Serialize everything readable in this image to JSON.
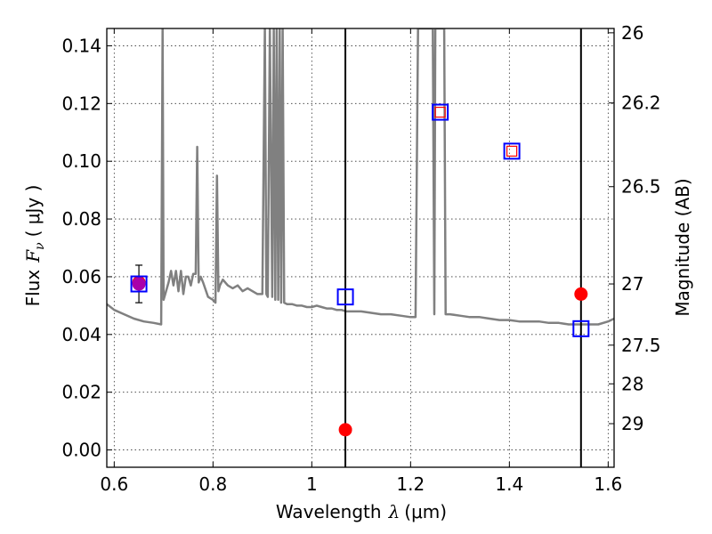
{
  "chart_data": {
    "type": "scatter",
    "xlabel": {
      "main": "Wavelength",
      "symbol": "λ",
      "unit": "(μm)"
    },
    "ylabel": {
      "main": "Flux",
      "symbol": "F",
      "sub": "ν",
      "unit": "( μJy )"
    },
    "y2label": "Magnitude (AB)",
    "xlim": [
      0.585,
      1.612
    ],
    "ylim": [
      -0.006,
      0.146
    ],
    "grid": true,
    "x_ticks": [
      {
        "value": 0.6,
        "label": "0.6"
      },
      {
        "value": 0.8,
        "label": "0.8"
      },
      {
        "value": 1.0,
        "label": "1"
      },
      {
        "value": 1.2,
        "label": "1.2"
      },
      {
        "value": 1.4,
        "label": "1.4"
      },
      {
        "value": 1.6,
        "label": "1.6"
      }
    ],
    "y_ticks": [
      {
        "value": 0.0,
        "label": "0.00"
      },
      {
        "value": 0.02,
        "label": "0.02"
      },
      {
        "value": 0.04,
        "label": "0.04"
      },
      {
        "value": 0.06,
        "label": "0.06"
      },
      {
        "value": 0.08,
        "label": "0.08"
      },
      {
        "value": 0.1,
        "label": "0.10"
      },
      {
        "value": 0.12,
        "label": "0.12"
      },
      {
        "value": 0.14,
        "label": "0.14"
      }
    ],
    "y2_ticks": [
      {
        "label": "26",
        "flux": 0.1445
      },
      {
        "label": "26.2",
        "flux": 0.1202
      },
      {
        "label": "26.5",
        "flux": 0.0912
      },
      {
        "label": "27",
        "flux": 0.0575
      },
      {
        "label": "27.5",
        "flux": 0.0363
      },
      {
        "label": "28",
        "flux": 0.0229
      },
      {
        "label": "29",
        "flux": 0.0091
      }
    ],
    "vertical_lines": [
      1.068,
      1.545
    ],
    "series": [
      {
        "role": "model-sed",
        "style": "line",
        "color": "#808080",
        "x": [
          0.585,
          0.6,
          0.62,
          0.64,
          0.66,
          0.68,
          0.695,
          0.698,
          0.7,
          0.705,
          0.71,
          0.715,
          0.72,
          0.725,
          0.73,
          0.735,
          0.74,
          0.745,
          0.75,
          0.755,
          0.76,
          0.765,
          0.768,
          0.771,
          0.775,
          0.78,
          0.79,
          0.8,
          0.805,
          0.808,
          0.811,
          0.814,
          0.82,
          0.83,
          0.84,
          0.85,
          0.86,
          0.87,
          0.88,
          0.89,
          0.9,
          0.905,
          0.908,
          0.911,
          0.915,
          0.92,
          0.923,
          0.926,
          0.929,
          0.932,
          0.935,
          0.938,
          0.941,
          0.944,
          0.95,
          0.96,
          0.97,
          0.98,
          0.99,
          1.0,
          1.01,
          1.02,
          1.03,
          1.04,
          1.05,
          1.06,
          1.07,
          1.08,
          1.09,
          1.1,
          1.12,
          1.14,
          1.16,
          1.18,
          1.2,
          1.21,
          1.215,
          1.22,
          1.225,
          1.23,
          1.235,
          1.24,
          1.245,
          1.248,
          1.25,
          1.255,
          1.26,
          1.265,
          1.268,
          1.271,
          1.275,
          1.28,
          1.3,
          1.32,
          1.34,
          1.36,
          1.38,
          1.4,
          1.42,
          1.44,
          1.46,
          1.48,
          1.5,
          1.52,
          1.54,
          1.56,
          1.58,
          1.6,
          1.612
        ],
        "y": [
          0.0505,
          0.0485,
          0.047,
          0.0455,
          0.0445,
          0.044,
          0.0435,
          0.146,
          0.052,
          0.055,
          0.058,
          0.062,
          0.057,
          0.062,
          0.055,
          0.062,
          0.054,
          0.06,
          0.06,
          0.057,
          0.061,
          0.061,
          0.105,
          0.058,
          0.06,
          0.058,
          0.053,
          0.052,
          0.051,
          0.095,
          0.055,
          0.057,
          0.059,
          0.057,
          0.056,
          0.057,
          0.055,
          0.056,
          0.055,
          0.054,
          0.054,
          0.146,
          0.054,
          0.053,
          0.146,
          0.053,
          0.146,
          0.052,
          0.146,
          0.052,
          0.146,
          0.051,
          0.146,
          0.051,
          0.0505,
          0.0505,
          0.05,
          0.05,
          0.0495,
          0.0495,
          0.05,
          0.0495,
          0.049,
          0.049,
          0.0485,
          0.0485,
          0.048,
          0.048,
          0.048,
          0.048,
          0.0475,
          0.047,
          0.047,
          0.0465,
          0.046,
          0.046,
          0.146,
          0.146,
          0.146,
          0.146,
          0.146,
          0.146,
          0.146,
          0.047,
          0.146,
          0.146,
          0.146,
          0.146,
          0.146,
          0.047,
          0.047,
          0.047,
          0.0465,
          0.046,
          0.046,
          0.0455,
          0.045,
          0.045,
          0.0445,
          0.0445,
          0.0445,
          0.044,
          0.044,
          0.0435,
          0.0435,
          0.0435,
          0.0435,
          0.0445,
          0.0455
        ]
      },
      {
        "role": "measured-flux",
        "style": "circle",
        "color": "#ff0000",
        "points": [
          [
            0.65,
            0.058
          ],
          [
            1.068,
            0.007
          ],
          [
            1.545,
            0.054
          ]
        ]
      },
      {
        "role": "model-flux",
        "style": "open-square",
        "color": "#0000ff",
        "points": [
          [
            0.65,
            0.0575
          ],
          [
            1.068,
            0.053
          ],
          [
            1.26,
            0.117
          ],
          [
            1.405,
            0.1035
          ],
          [
            1.545,
            0.042
          ]
        ]
      },
      {
        "role": "inner-marker",
        "style": "small-square",
        "color": "#ff0000",
        "points": [
          [
            1.26,
            0.117
          ],
          [
            1.405,
            0.1035
          ]
        ]
      },
      {
        "role": "purple-point",
        "style": "circle",
        "color": "#aa00aa",
        "points": [
          [
            0.65,
            0.0575
          ]
        ],
        "yerr": [
          0.0065
        ]
      }
    ]
  }
}
